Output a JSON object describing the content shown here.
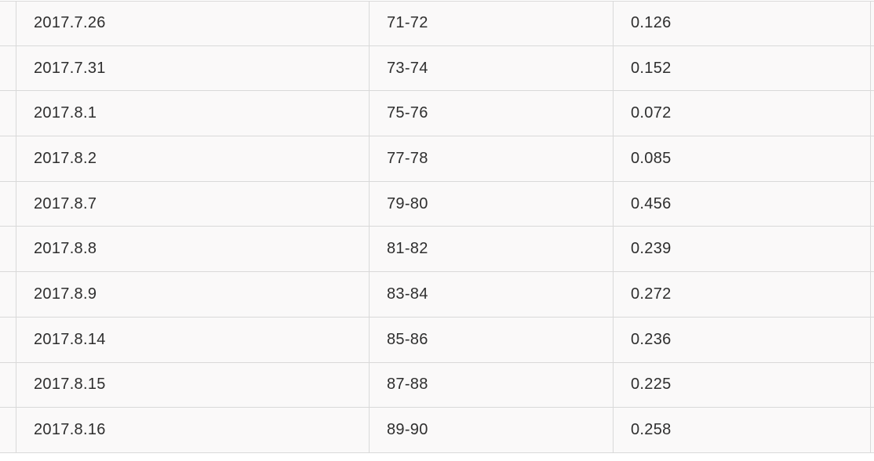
{
  "chart_data": {
    "type": "table",
    "columns": [
      "date",
      "range",
      "value"
    ],
    "rows": [
      [
        "2017.7.26",
        "71-72",
        "0.126"
      ],
      [
        "2017.7.31",
        "73-74",
        "0.152"
      ],
      [
        "2017.8.1",
        "75-76",
        "0.072"
      ],
      [
        "2017.8.2",
        "77-78",
        "0.085"
      ],
      [
        "2017.8.7",
        "79-80",
        "0.456"
      ],
      [
        "2017.8.8",
        "81-82",
        "0.239"
      ],
      [
        "2017.8.9",
        "83-84",
        "0.272"
      ],
      [
        "2017.8.14",
        "85-86",
        "0.236"
      ],
      [
        "2017.8.15",
        "87-88",
        "0.225"
      ],
      [
        "2017.8.16",
        "89-90",
        "0.258"
      ]
    ],
    "title": "",
    "legend": "none",
    "grid": "full-borders"
  },
  "table": {
    "rows": [
      {
        "date": "2017.7.26",
        "range": "71-72",
        "value": "0.126"
      },
      {
        "date": "2017.7.31",
        "range": "73-74",
        "value": "0.152"
      },
      {
        "date": "2017.8.1",
        "range": "75-76",
        "value": "0.072"
      },
      {
        "date": "2017.8.2",
        "range": "77-78",
        "value": "0.085"
      },
      {
        "date": "2017.8.7",
        "range": "79-80",
        "value": "0.456"
      },
      {
        "date": "2017.8.8",
        "range": "81-82",
        "value": "0.239"
      },
      {
        "date": "2017.8.9",
        "range": "83-84",
        "value": "0.272"
      },
      {
        "date": "2017.8.14",
        "range": "85-86",
        "value": "0.236"
      },
      {
        "date": "2017.8.15",
        "range": "87-88",
        "value": "0.225"
      },
      {
        "date": "2017.8.16",
        "range": "89-90",
        "value": "0.258"
      }
    ]
  },
  "colors": {
    "border": "#d9d9d9",
    "cell_background": "#faf9f9",
    "page_background": "#ffffff",
    "text": "#2e2e2e"
  }
}
